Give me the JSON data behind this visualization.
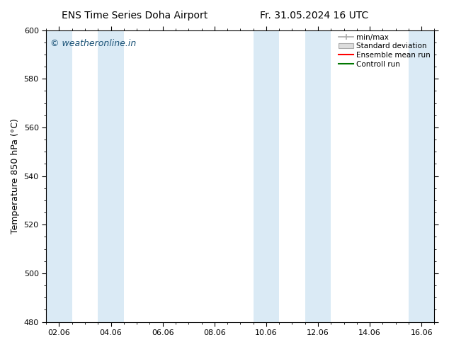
{
  "title_left": "ENS Time Series Doha Airport",
  "title_right": "Fr. 31.05.2024 16 UTC",
  "ylabel": "Temperature 850 hPa (°C)",
  "ylim": [
    480,
    600
  ],
  "yticks": [
    480,
    500,
    520,
    540,
    560,
    580,
    600
  ],
  "xlim_min": 0,
  "xlim_max": 14,
  "xtick_positions": [
    0,
    2,
    4,
    6,
    8,
    10,
    12,
    14
  ],
  "xtick_labels": [
    "02.06",
    "04.06",
    "06.06",
    "08.06",
    "10.06",
    "12.06",
    "14.06",
    "16.06"
  ],
  "shaded_bands": [
    {
      "xmin": -0.5,
      "xmax": 0.5
    },
    {
      "xmin": 1.5,
      "xmax": 2.5
    },
    {
      "xmin": 7.5,
      "xmax": 8.5
    },
    {
      "xmin": 9.5,
      "xmax": 10.5
    },
    {
      "xmin": 13.5,
      "xmax": 14.5
    }
  ],
  "band_color": "#daeaf5",
  "background_color": "#ffffff",
  "plot_bg_color": "#ffffff",
  "watermark": "© weatheronline.in",
  "watermark_color": "#1a5276",
  "legend_items": [
    {
      "label": "min/max",
      "color": "#aaaaaa",
      "type": "errorbar"
    },
    {
      "label": "Standard deviation",
      "color": "#cccccc",
      "type": "box"
    },
    {
      "label": "Ensemble mean run",
      "color": "#ff0000",
      "type": "line"
    },
    {
      "label": "Controll run",
      "color": "#007700",
      "type": "line"
    }
  ],
  "title_fontsize": 10,
  "axis_label_fontsize": 9,
  "tick_fontsize": 8,
  "legend_fontsize": 7.5,
  "watermark_fontsize": 9
}
